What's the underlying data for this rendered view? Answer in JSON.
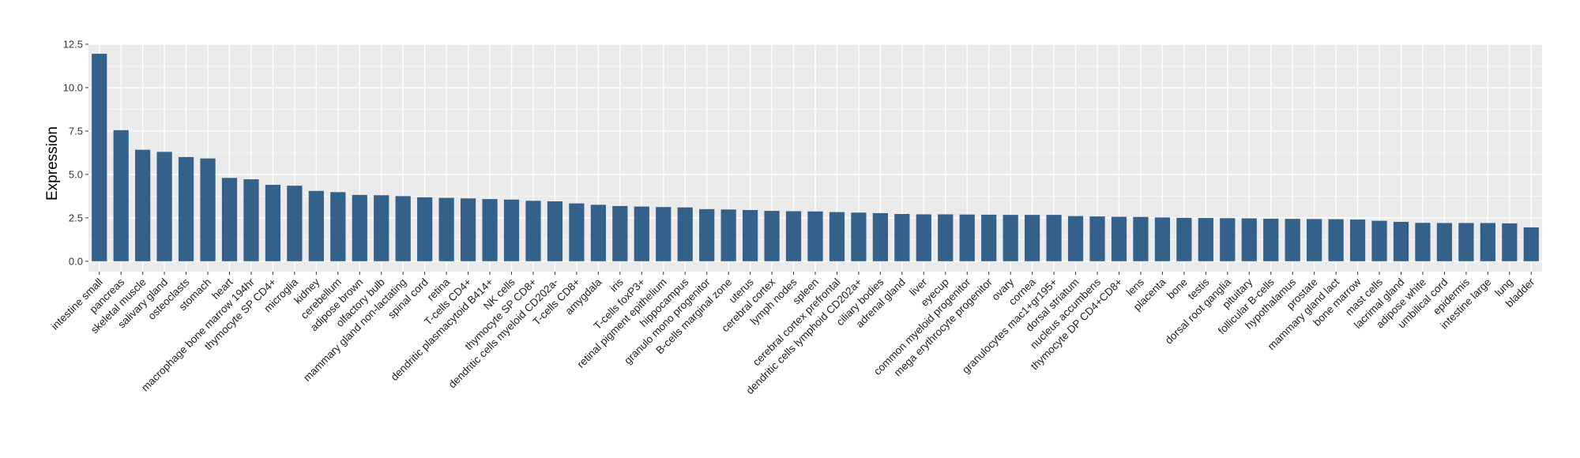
{
  "chart_data": {
    "type": "bar",
    "title": "",
    "xlabel": "",
    "ylabel": "Expression",
    "ylim": [
      -0.6,
      12.5
    ],
    "yticks": [
      0.0,
      2.5,
      5.0,
      7.5,
      10.0,
      12.5
    ],
    "ytick_labels": [
      "0.0",
      "2.5",
      "5.0",
      "7.5",
      "10.0",
      "12.5"
    ],
    "grid": true,
    "bar_color": "#336189",
    "panel_color": "#ebebeb",
    "categories": [
      "intestine small",
      "pancreas",
      "skeletal muscle",
      "salivary gland",
      "osteoclasts",
      "stomach",
      "heart",
      "macrophage bone marrow 194hr",
      "thymocyte SP CD4+",
      "microglia",
      "kidney",
      "cerebellum",
      "adipose brown",
      "olfactory bulb",
      "mammary gland non-lactating",
      "spinal cord",
      "retina",
      "T-cells CD4+",
      "dendritic plasmacytoid B414+",
      "NK cells",
      "thymocyte SP CD8+",
      "dendritic cells myeloid CD202a-",
      "T-cells CD8+",
      "amygdala",
      "iris",
      "T-cells foxP3+",
      "retinal pigment epithelium",
      "hippocampus",
      "granulo mono progenitor",
      "B-cells marginal zone",
      "uterus",
      "cerebral cortex",
      "lymph nodes",
      "spleen",
      "cerebral cortex prefrontal",
      "dendritic cells lymphoid CD202a+",
      "ciliary bodies",
      "adrenal gland",
      "liver",
      "eyecup",
      "common myeloid progenitor",
      "mega erythrocyte progenitor",
      "ovary",
      "cornea",
      "granulocytes mac1+gr195+",
      "dorsal striatum",
      "nucleus accumbens",
      "thymocyte DP CD4+CD8+",
      "lens",
      "placenta",
      "bone",
      "testis",
      "dorsal root ganglia",
      "pituitary",
      "follicular B-cells",
      "hypothalamus",
      "prostate",
      "mammary gland lact",
      "bone marrow",
      "mast cells",
      "lacrimal gland",
      "adipose white",
      "umbilical cord",
      "epidermis",
      "intestine large",
      "lung",
      "bladder"
    ],
    "values": [
      11.95,
      7.55,
      6.42,
      6.3,
      6.0,
      5.92,
      4.8,
      4.72,
      4.4,
      4.35,
      4.05,
      3.98,
      3.82,
      3.8,
      3.75,
      3.68,
      3.65,
      3.62,
      3.58,
      3.55,
      3.48,
      3.45,
      3.33,
      3.25,
      3.18,
      3.15,
      3.12,
      3.1,
      3.0,
      2.98,
      2.95,
      2.9,
      2.88,
      2.87,
      2.83,
      2.8,
      2.77,
      2.72,
      2.7,
      2.7,
      2.69,
      2.68,
      2.67,
      2.67,
      2.67,
      2.6,
      2.58,
      2.56,
      2.55,
      2.52,
      2.5,
      2.49,
      2.48,
      2.47,
      2.45,
      2.44,
      2.43,
      2.42,
      2.4,
      2.33,
      2.27,
      2.21,
      2.2,
      2.2,
      2.2,
      2.18,
      1.95
    ]
  }
}
